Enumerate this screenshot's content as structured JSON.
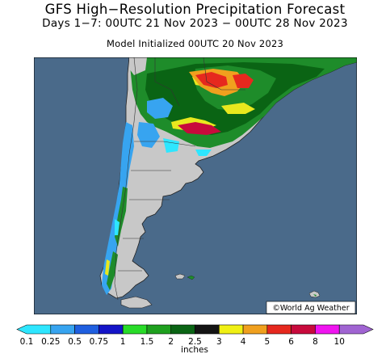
{
  "header": {
    "title": "GFS High−Resolution Precipitation Forecast",
    "subtitle": "Days 1−7: 00UTC 21 Nov 2023 − 00UTC 28 Nov 2023",
    "init_line": "Model Initialized 00UTC 20 Nov 2023"
  },
  "map": {
    "credit": "©World Ag Weather",
    "colors": {
      "ocean": "#4a6a8a",
      "land_dry": "#c8c8c8",
      "border": "#333333"
    }
  },
  "colorbar": {
    "units": "inches",
    "tick_labels": [
      "0.1",
      "0.25",
      "0.5",
      "0.75",
      "1",
      "1.5",
      "2",
      "2.5",
      "3",
      "4",
      "5",
      "6",
      "8",
      "10"
    ],
    "colors": [
      "#2ee6ff",
      "#37a4f0",
      "#1f5fe0",
      "#1414c8",
      "#28dc28",
      "#1ea01e",
      "#0a6414",
      "#141414",
      "#f0f014",
      "#f0a01e",
      "#e6281e",
      "#c80a3c",
      "#f014f0",
      "#a064d2"
    ]
  }
}
